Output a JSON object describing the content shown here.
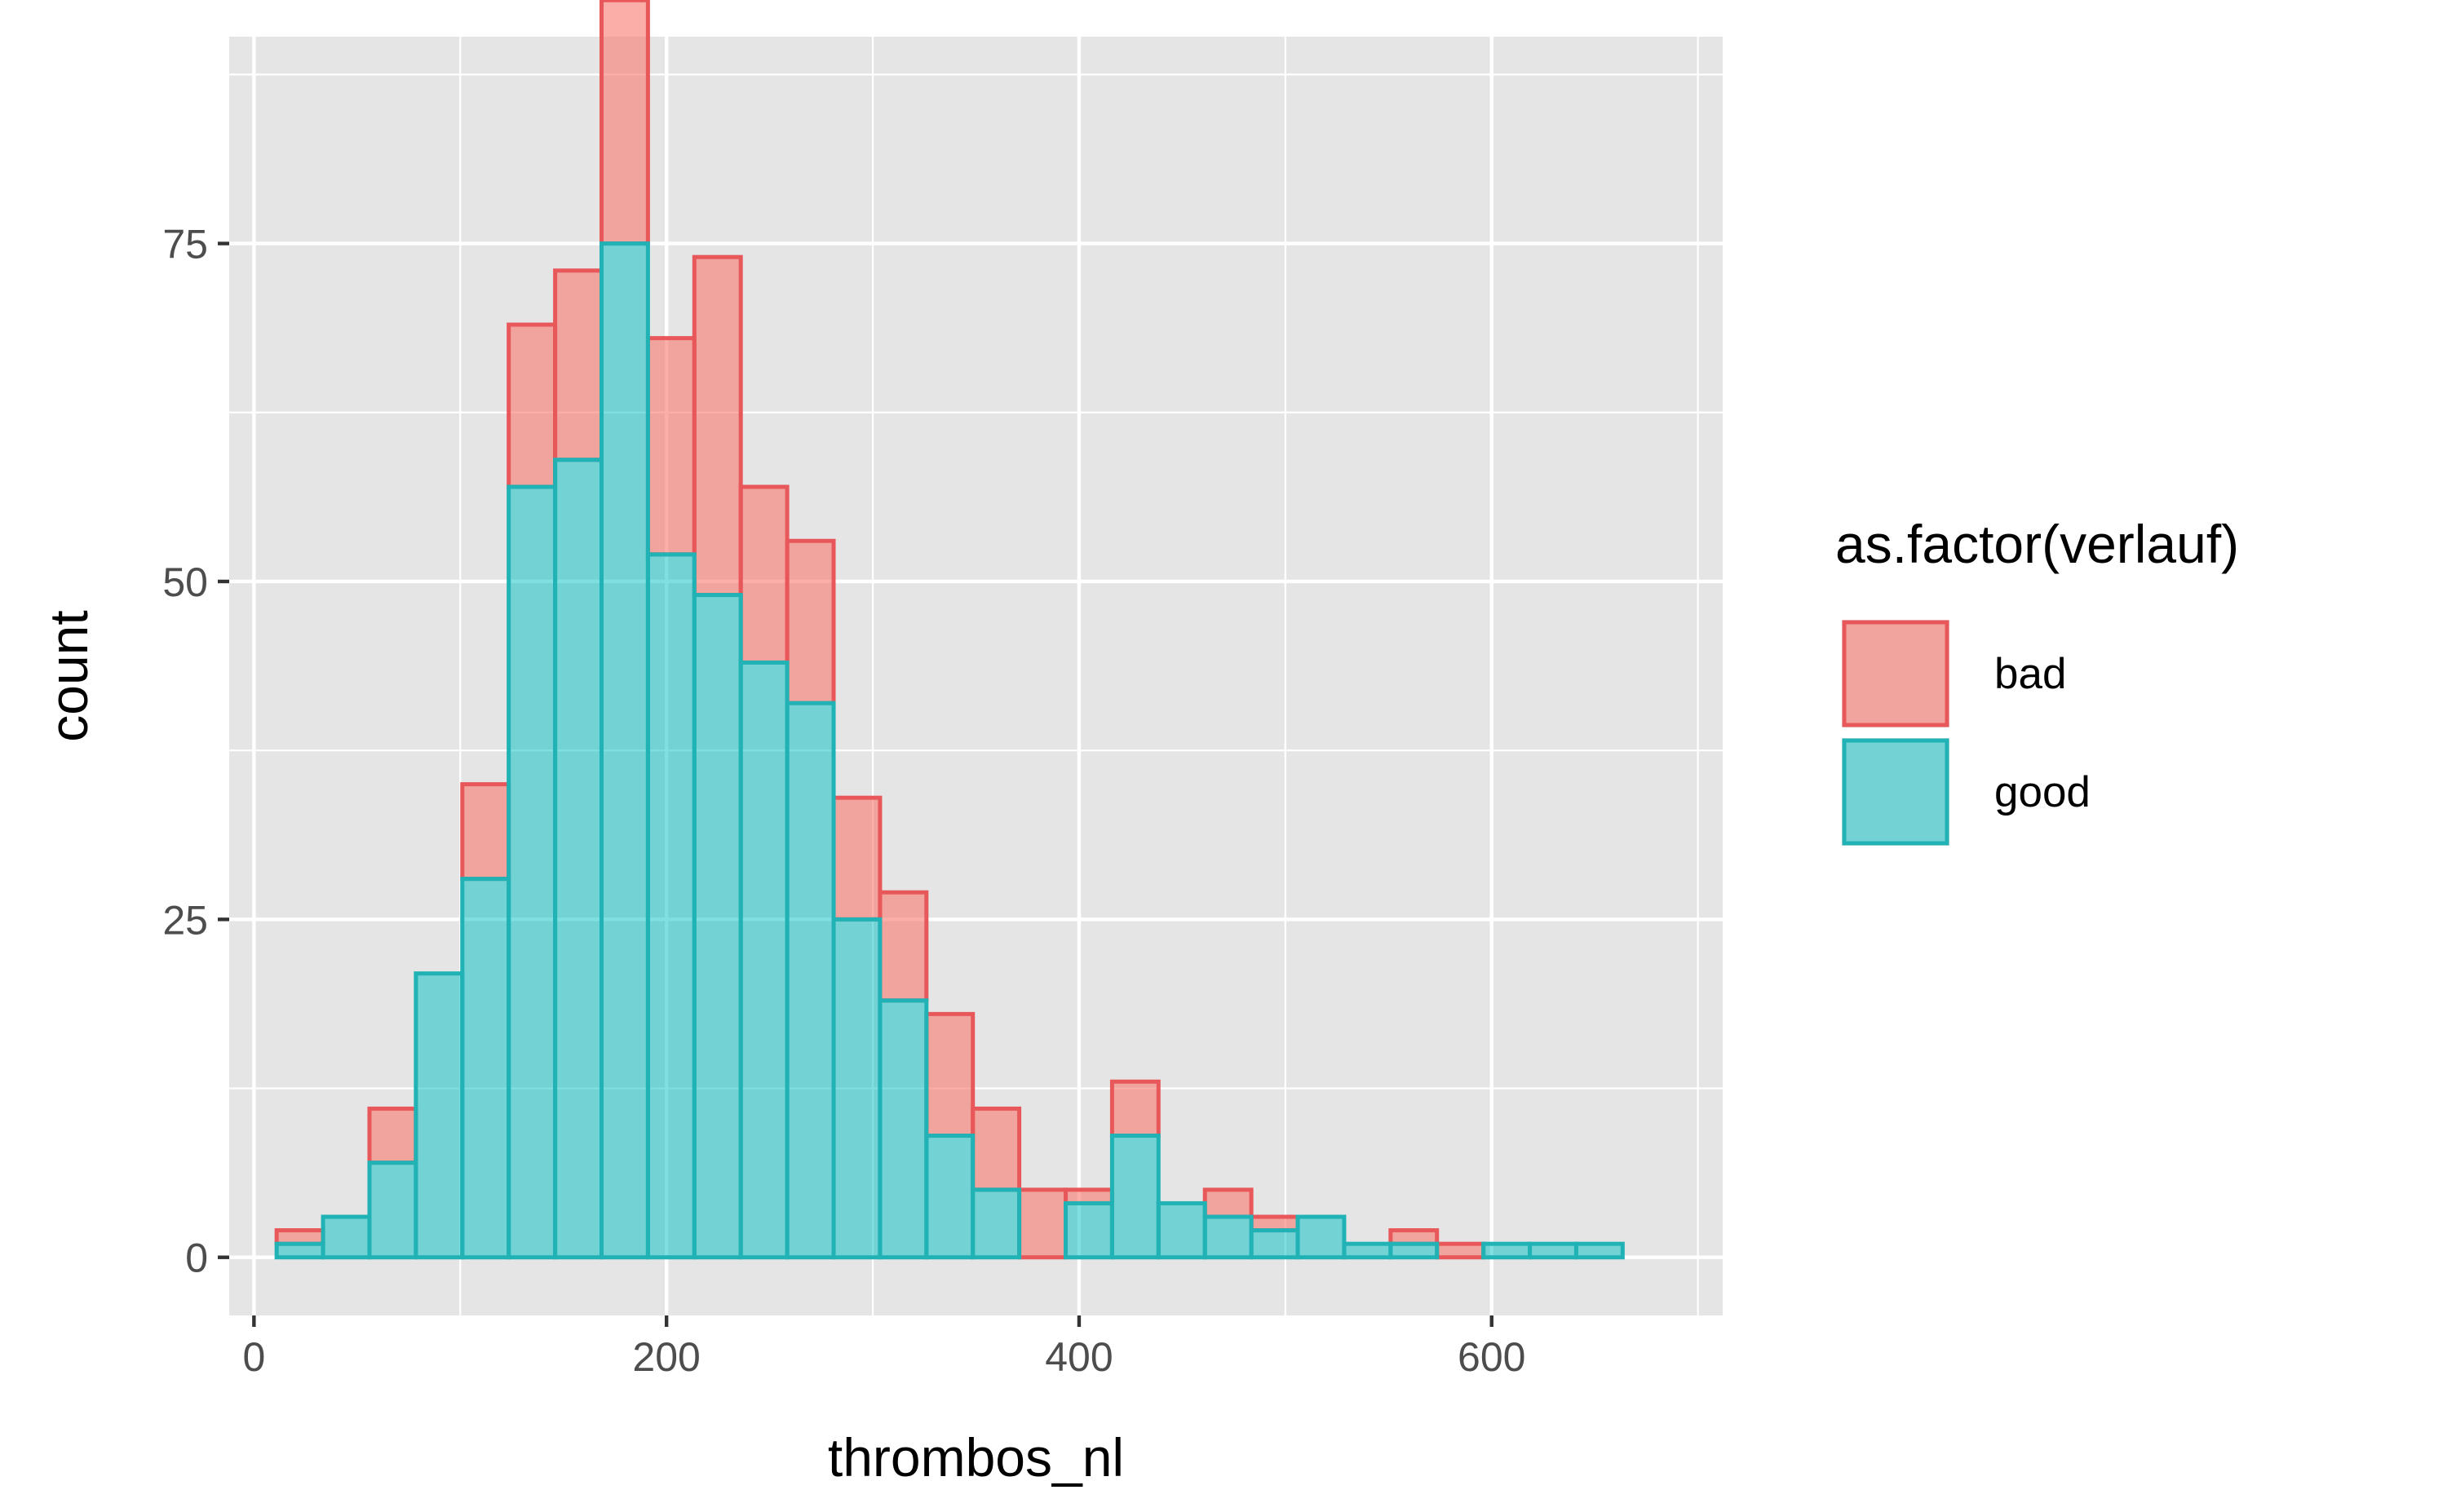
{
  "chart_data": {
    "type": "histogram",
    "position": "stack",
    "xlabel": "thrombos_nl",
    "ylabel": "count",
    "xlim": [
      -12,
      712
    ],
    "ylim": [
      -4.3,
      90.3
    ],
    "x_ticks": [
      0,
      200,
      400,
      600
    ],
    "y_ticks": [
      0,
      25,
      50,
      75
    ],
    "grid": true,
    "legend": {
      "title": "as.factor(verlauf)",
      "position": "right"
    },
    "bin_width": 22.5,
    "bin_start": 11,
    "series": [
      {
        "name": "bad",
        "fill": "#F8766D",
        "stroke": "#E8585A",
        "values": [
          1,
          0,
          4,
          0,
          7,
          12,
          14,
          18,
          16,
          25,
          13,
          12,
          9,
          8,
          9,
          6,
          5,
          1,
          4,
          0,
          2,
          1,
          0,
          0,
          1,
          1,
          0,
          0,
          0,
          0
        ]
      },
      {
        "name": "good",
        "fill": "#00BFC4",
        "stroke": "#20B2B5",
        "values": [
          1,
          3,
          7,
          21,
          28,
          57,
          59,
          75,
          52,
          49,
          44,
          41,
          25,
          19,
          9,
          5,
          0,
          4,
          9,
          4,
          3,
          2,
          3,
          1,
          1,
          0,
          1,
          1,
          1,
          0
        ]
      }
    ]
  }
}
